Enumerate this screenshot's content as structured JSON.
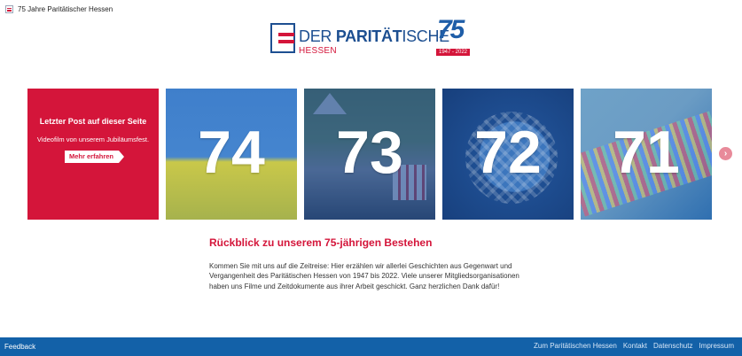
{
  "topbar": {
    "title": "75 Jahre Paritätischer Hessen"
  },
  "brand": {
    "name_part1": "DER ",
    "name_part2": "PARITÄT",
    "name_part3": "ISCHE",
    "region": "HESSEN",
    "anniversary": "75",
    "years": "1947 - 2022"
  },
  "tiles": {
    "red": {
      "heading": "Letzter Post auf dieser Seite",
      "description": "Videofilm von unserem Jubiläumsfest.",
      "button": "Mehr erfahren"
    },
    "numbers": [
      "74",
      "73",
      "72",
      "71"
    ]
  },
  "section": {
    "title": "Rückblick zu unserem 75-jährigen Bestehen",
    "text": "Kommen Sie mit uns auf die Zeitreise:  Hier erzählen wir allerlei Geschichten aus Gegenwart und Vergangenheit des Paritätischen Hessen von 1947 bis 2022. Viele unserer Mitgliedsorganisationen haben uns Filme und Zeitdokumente aus ihrer Arbeit geschickt. Ganz herzlichen Dank dafür!"
  },
  "footer": {
    "feedback": "Feedback",
    "links": [
      "Zum Paritätischen Hessen",
      "Kontakt",
      "Datenschutz",
      "Impressum"
    ]
  },
  "colors": {
    "brand_red": "#d4153a",
    "brand_blue": "#1d4f91",
    "footer_blue": "#1361a8"
  }
}
